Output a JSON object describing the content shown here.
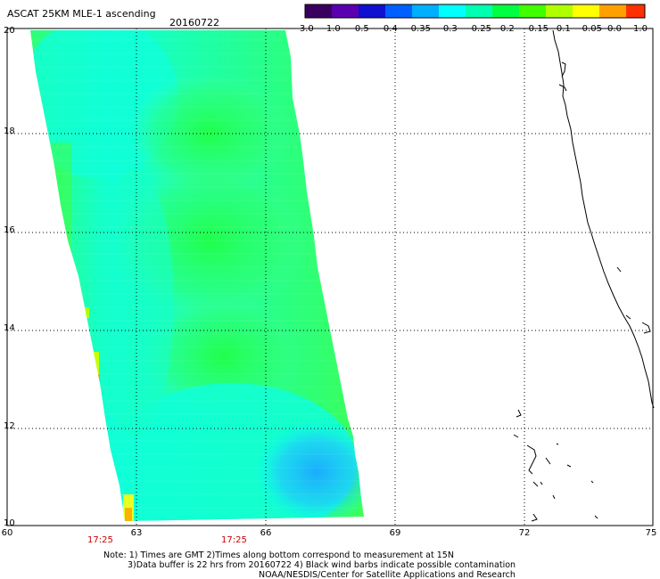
{
  "header": {
    "title": "ASCAT 25KM MLE-1 ascending",
    "date": "20160722"
  },
  "colorbar": {
    "labels": [
      "-3.0",
      "-1.0",
      "-0.5",
      "-0.4",
      "-0.35",
      "-0.3",
      "-0.25",
      "-0.2",
      "-0.15",
      "-0.1",
      "-0.05",
      "0.0",
      "1.0"
    ],
    "colors": [
      "#3a0060",
      "#5a00b0",
      "#1010d0",
      "#0060ff",
      "#00b0ff",
      "#00ffff",
      "#00ffb0",
      "#00ff40",
      "#40ff00",
      "#b0ff00",
      "#ffff00",
      "#ffa000",
      "#ff3000"
    ]
  },
  "axes": {
    "lat_ticks": [
      "20",
      "18",
      "16",
      "14",
      "12",
      "10"
    ],
    "lon_ticks": [
      "60",
      "63",
      "66",
      "69",
      "72",
      "75"
    ]
  },
  "time_labels": [
    "17:25",
    "17:25"
  ],
  "time_color": "#cc0000",
  "notes": [
    "Note: 1) Times are GMT 2)Times along bottom correspond to measurement at 15N",
    "3)Data buffer is 22 hrs from 20160722 4) Black wind barbs indicate possible contamination",
    "NOAA/NESDIS/Center for Satellite Applications and Research"
  ]
}
